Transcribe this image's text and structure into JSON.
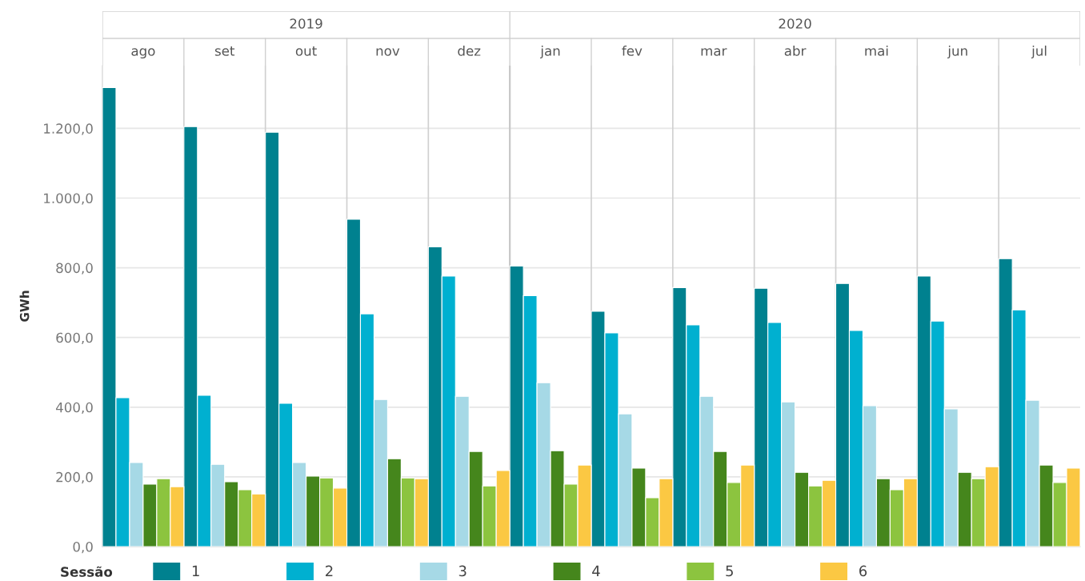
{
  "chart_data": {
    "type": "bar",
    "categories": [
      "ago",
      "set",
      "out",
      "nov",
      "dez",
      "jan",
      "fev",
      "mar",
      "abr",
      "mai",
      "jun",
      "jul"
    ],
    "annotations": [
      "2019",
      "2020"
    ],
    "ref_lines": [
      {
        "axis": "x",
        "value": "jan",
        "color": "#c8c8c8"
      }
    ],
    "ylabel": "GWh",
    "legend_title": "Sessão",
    "legend": "bottom",
    "grid": "y",
    "ylim": [
      0,
      1380
    ],
    "yticks": [
      {
        "value": 0,
        "label": "0,0"
      },
      {
        "value": 200,
        "label": "200,0"
      },
      {
        "value": 400,
        "label": "400,0"
      },
      {
        "value": 600,
        "label": "600,0"
      },
      {
        "value": 800,
        "label": "800,0"
      },
      {
        "value": 1000,
        "label": "1.000,0"
      },
      {
        "value": 1200,
        "label": "1.200,0"
      }
    ],
    "series": [
      {
        "name": "1",
        "color": "#00818f",
        "values": [
          1317,
          1205,
          1189,
          939,
          860,
          805,
          675,
          743,
          741,
          755,
          776,
          826
        ]
      },
      {
        "name": "2",
        "color": "#00b0d0",
        "values": [
          427,
          434,
          411,
          668,
          776,
          720,
          613,
          636,
          643,
          620,
          647,
          679
        ]
      },
      {
        "name": "3",
        "color": "#a6d9e6",
        "values": [
          241,
          236,
          241,
          422,
          431,
          470,
          381,
          431,
          415,
          404,
          395,
          420
        ]
      },
      {
        "name": "4",
        "color": "#45861c",
        "values": [
          179,
          186,
          202,
          252,
          273,
          275,
          225,
          273,
          213,
          195,
          213,
          234
        ]
      },
      {
        "name": "5",
        "color": "#8cc43f",
        "values": [
          195,
          163,
          197,
          197,
          174,
          179,
          140,
          184,
          174,
          163,
          195,
          184
        ]
      },
      {
        "name": "6",
        "color": "#fbc843",
        "values": [
          172,
          151,
          168,
          195,
          218,
          234,
          195,
          234,
          190,
          195,
          229,
          225
        ]
      }
    ]
  }
}
